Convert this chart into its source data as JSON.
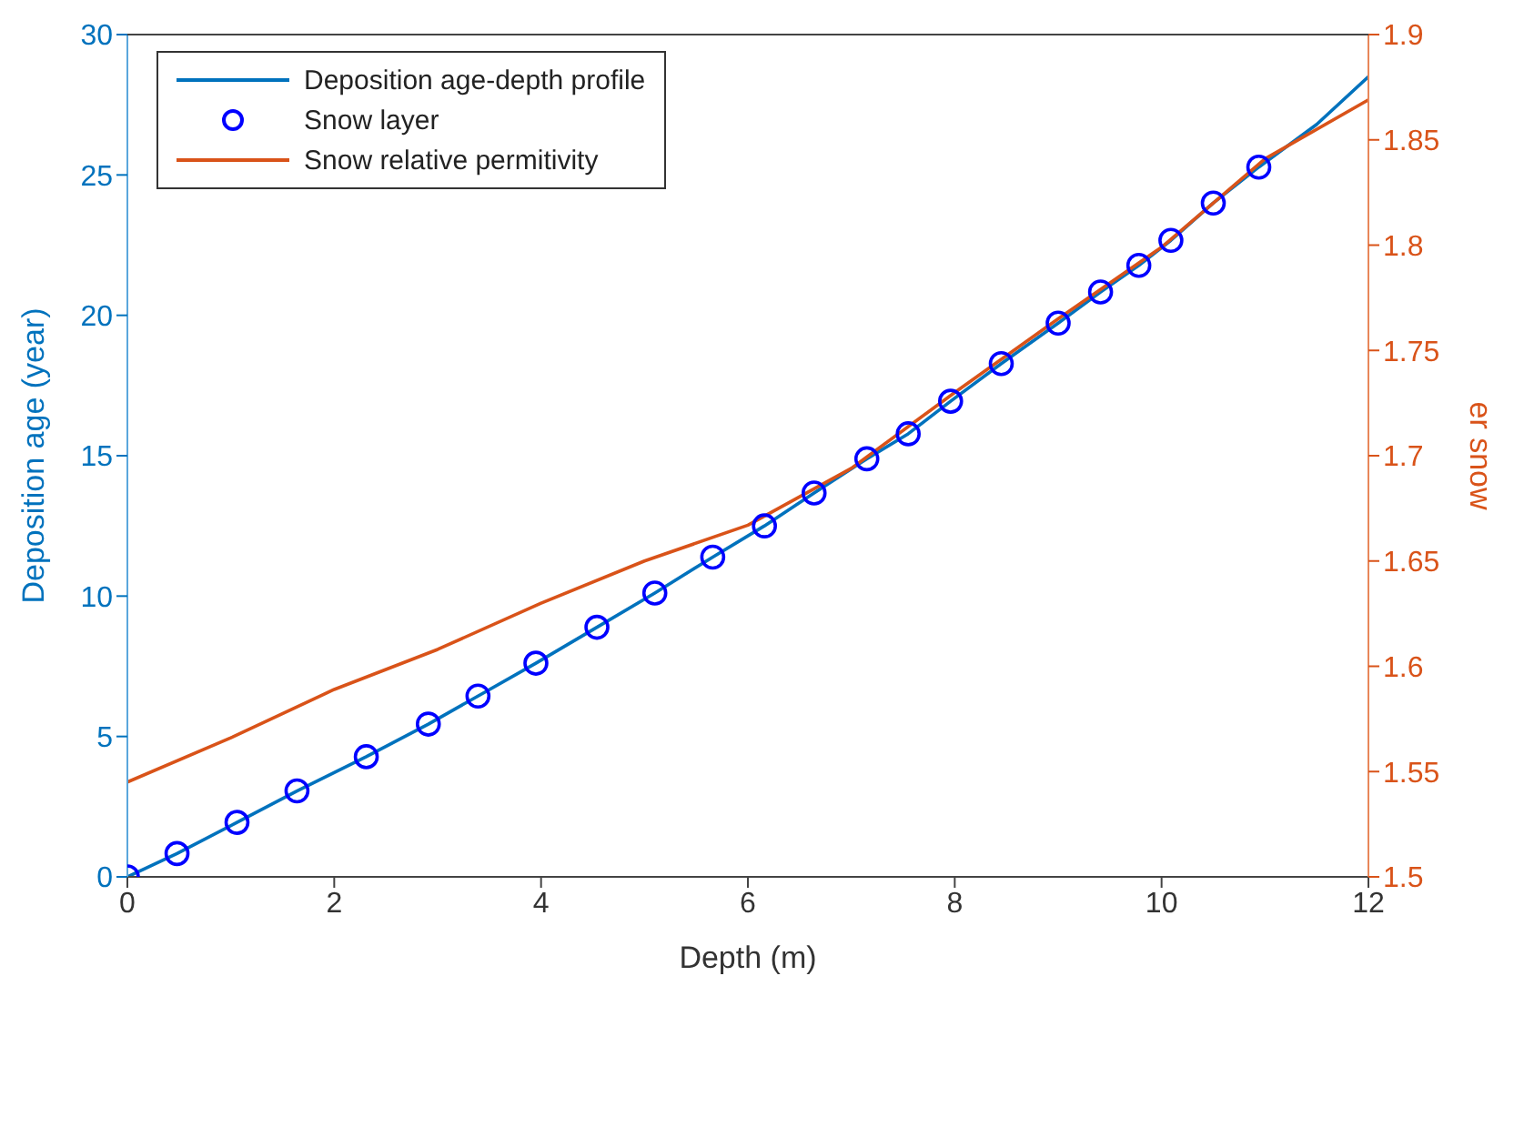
{
  "chart_data": {
    "type": "line",
    "xlabel": "Depth (m)",
    "ylabel": "Deposition age (year)",
    "y2label": "er snow",
    "xlim": [
      0,
      12
    ],
    "xticks": [
      0,
      2,
      4,
      6,
      8,
      10,
      12
    ],
    "ylim": [
      0,
      30
    ],
    "yticks": [
      0,
      5,
      10,
      15,
      20,
      25,
      30
    ],
    "y2lim": [
      1.5,
      1.9
    ],
    "y2ticks": [
      1.5,
      1.55,
      1.6,
      1.65,
      1.7,
      1.75,
      1.8,
      1.85,
      1.9
    ],
    "legend": "top left",
    "series": [
      {
        "name": "Deposition age-depth profile",
        "color": "#0072bd",
        "marker": "none",
        "line_style": "solid",
        "x": [
          0,
          0.48,
          1.06,
          1.64,
          2.31,
          2.91,
          3.39,
          3.95,
          4.54,
          5.1,
          5.66,
          6.16,
          6.64,
          7.15,
          7.55,
          7.96,
          8.45,
          9.0,
          9.41,
          9.78,
          10.09,
          10.5,
          10.94,
          11.5,
          12
        ],
        "values": [
          0,
          0.83,
          1.94,
          3.06,
          4.28,
          5.44,
          6.44,
          7.61,
          8.89,
          10.11,
          11.39,
          12.5,
          13.67,
          14.89,
          15.78,
          16.94,
          18.28,
          19.72,
          20.83,
          21.78,
          22.67,
          24.0,
          25.28,
          26.8,
          28.5
        ]
      },
      {
        "name": "Snow layer",
        "type": "scatter",
        "color": "#0000ff",
        "marker": "circle",
        "x": [
          0,
          0.48,
          1.06,
          1.64,
          2.31,
          2.91,
          3.39,
          3.95,
          4.54,
          5.1,
          5.66,
          6.16,
          6.64,
          7.15,
          7.55,
          7.96,
          8.45,
          9.0,
          9.41,
          9.78,
          10.09,
          10.5,
          10.94
        ],
        "values": [
          0,
          0.83,
          1.94,
          3.06,
          4.28,
          5.44,
          6.44,
          7.61,
          8.89,
          10.11,
          11.39,
          12.5,
          13.67,
          14.89,
          15.78,
          16.94,
          18.28,
          19.72,
          20.83,
          21.78,
          22.67,
          24.0,
          25.28
        ]
      },
      {
        "name": "Snow relative permitivity",
        "axis": "y2",
        "color": "#d95319",
        "marker": "none",
        "line_style": "solid",
        "x": [
          0,
          1,
          2,
          3,
          4,
          5,
          6,
          7,
          8,
          9,
          10,
          11,
          12
        ],
        "values": [
          1.545,
          1.566,
          1.589,
          1.608,
          1.63,
          1.65,
          1.667,
          1.694,
          1.73,
          1.765,
          1.799,
          1.841,
          1.869
        ]
      }
    ]
  }
}
